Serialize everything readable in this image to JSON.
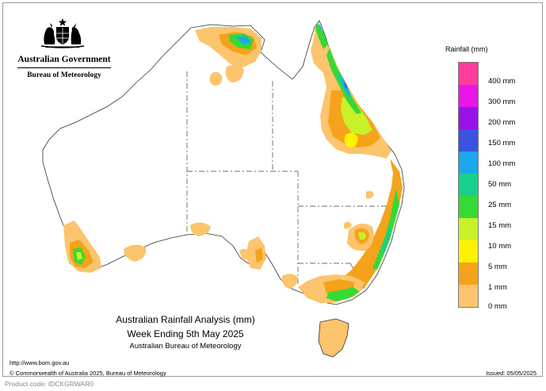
{
  "header": {
    "government": "Australian Government",
    "bureau": "Bureau of Meteorology",
    "crest_icon": "coat-of-arms-icon"
  },
  "map": {
    "region": "Australia",
    "colors": {
      "land_background": "#ffffff",
      "coastline": "#333333",
      "state_borders": "#6a6a6a",
      "rain_1_5": "#fcc46c",
      "rain_5_10": "#f5a31a",
      "rain_10_15": "#fff200",
      "rain_15_25": "#c7f22a",
      "rain_25_50": "#37d934",
      "rain_50_100": "#18d08c",
      "rain_100_150": "#1ba8ee",
      "rain_150_200": "#3a53e0"
    }
  },
  "legend": {
    "title": "Rainfall (mm)",
    "items": [
      {
        "label": "400 mm",
        "color": "#ff3c9e"
      },
      {
        "label": "300 mm",
        "color": "#e816e8"
      },
      {
        "label": "200 mm",
        "color": "#9a12ea"
      },
      {
        "label": "150 mm",
        "color": "#3a53e0"
      },
      {
        "label": "100 mm",
        "color": "#1ba8ee"
      },
      {
        "label": "50 mm",
        "color": "#18d08c"
      },
      {
        "label": "25 mm",
        "color": "#37d934"
      },
      {
        "label": "15 mm",
        "color": "#c7f22a"
      },
      {
        "label": "10 mm",
        "color": "#fff200"
      },
      {
        "label": "5 mm",
        "color": "#f5a31a"
      },
      {
        "label": "1 mm",
        "color": "#fcc46c"
      },
      {
        "label": "0 mm",
        "color": "#ffffff"
      }
    ]
  },
  "caption": {
    "line1": "Australian Rainfall Analysis (mm)",
    "line2": "Week Ending 5th May 2025",
    "line3": "Australian Bureau of Meteorology"
  },
  "footer": {
    "url": "http://www.bom.gov.au",
    "copyright": "© Commonwealth of Australia 2025, Bureau of Meteorology",
    "issued": "Issued: 05/05/2025",
    "product_code": "Product code: IDCKGRWAR0"
  }
}
